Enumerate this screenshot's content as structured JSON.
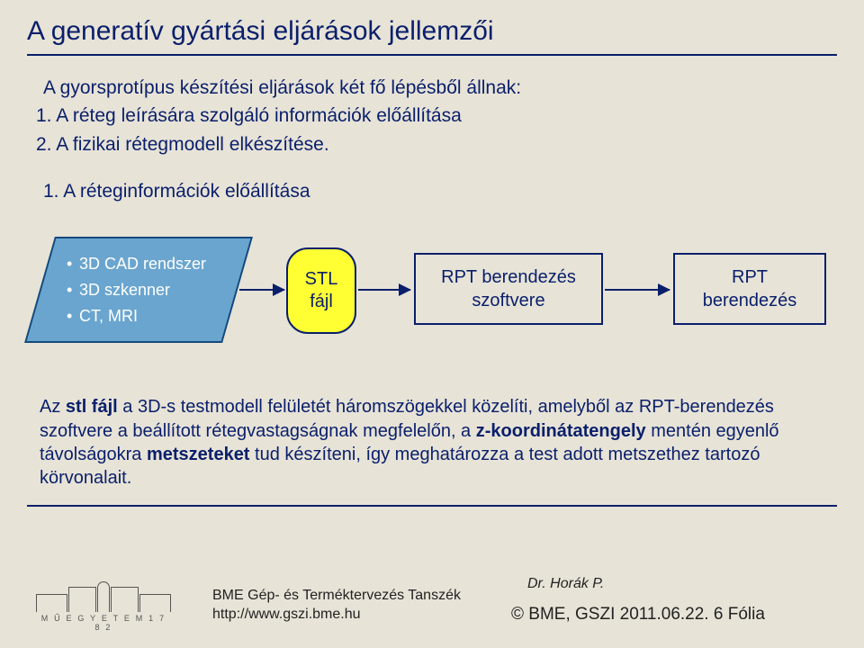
{
  "colors": {
    "page_bg": "#e7e3d7",
    "title_color": "#0a1f6b",
    "hr_color": "#0a1f6b",
    "text_color": "#0a1f6b",
    "body_color": "#0a1f6b",
    "bold_color": "#0a1f6b",
    "parallelogram_fill": "#6aa5cf",
    "parallelogram_border": "#144a7c",
    "parallelogram_text": "#ffffff",
    "roundrect_fill": "#ffff33",
    "roundrect_border": "#0a1f6b",
    "roundrect_text": "#0a1f6b",
    "rect_fill": "#e7e3d7",
    "rect_border": "#0a1f6b",
    "rect_text": "#0a1f6b",
    "arrow_color": "#0a1f6b",
    "footer_text": "#222222"
  },
  "title": "A generatív gyártási eljárások jellemzői",
  "intro": "A gyorsprotípus készítési eljárások két fő lépésből állnak:",
  "step1": "1. A réteg leírására szolgáló információk előállítása",
  "step2": "2. A fizikai rétegmodell elkészítése.",
  "section_label": "1. A réteginformációk előállítása",
  "flow": {
    "block1": {
      "bullet": "•",
      "line1": "3D CAD rendszer",
      "line2": "3D szkenner",
      "line3": "CT, MRI"
    },
    "block2": {
      "line1": "STL",
      "line2": "fájl"
    },
    "block3": {
      "line1": "RPT berendezés",
      "line2": "szoftvere"
    },
    "block4": {
      "line1": "RPT",
      "line2": "berendezés"
    }
  },
  "body": {
    "t1": "Az ",
    "b1": "stl fájl",
    "t2": " a 3D-s testmodell felületét háromszögekkel közelíti, amelyből az RPT-berendezés szoftvere a beállított rétegvastagságnak megfelelőn, a ",
    "b2": "z-koordinátatengely",
    "t3": " mentén egyenlő távolságokra ",
    "b3": "metszeteket",
    "t4": " tud készíteni, így meghatározza a test adott metszethez tartozó körvonalait."
  },
  "footer": {
    "logo_text": "M Ű E G Y E T E M   1 7 8 2",
    "dept_line1": "BME Gép- és Terméktervezés Tanszék",
    "dept_line2": "http://www.gszi.bme.hu",
    "speaker": "Dr. Horák P.",
    "copyright": "©  BME, GSZI  2011.06.22.  6 Fólia"
  }
}
